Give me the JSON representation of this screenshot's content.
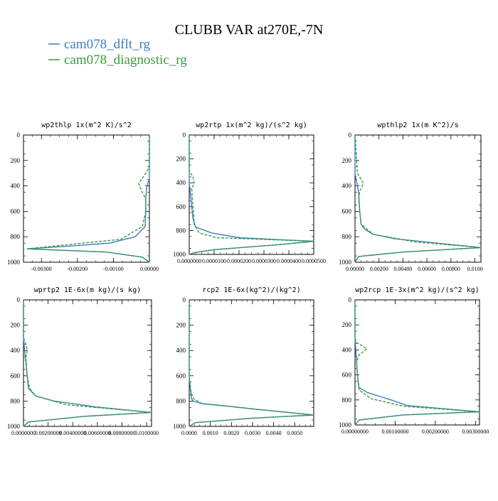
{
  "page": {
    "title": "CLUBB VAR at270E,-7N",
    "legend": [
      {
        "name": "cam078_dflt_rg",
        "color": "#3a7fc2"
      },
      {
        "name": "cam078_diagnostic_rg",
        "color": "#3c9b3c"
      }
    ]
  },
  "chart_data": [
    {
      "type": "line",
      "title": "wp2thlp  1x(m^2 K)/s^2",
      "xlim": [
        -0.0035,
        0.0
      ],
      "xticks": [
        -0.003,
        -0.002,
        -0.001,
        0.0
      ],
      "xtick_labels": [
        "-0.00300",
        "-0.00200",
        "-0.00100",
        "0.00000"
      ],
      "ylim": [
        0,
        1000
      ],
      "yticks": [
        0,
        200,
        400,
        600,
        800,
        1000
      ],
      "ytick_labels": [
        "0",
        "200",
        "400",
        "600",
        "800",
        "1000"
      ],
      "y_reversed": true,
      "series": [
        {
          "name": "cam078_dflt_rg",
          "color": "#3a7fc2",
          "x": [
            0.0,
            0.0,
            0.0,
            -5e-05,
            -8e-05,
            -0.0001,
            -0.0001,
            -0.00012,
            -0.0004,
            -0.0011,
            -0.0023,
            -0.0034,
            -0.0012,
            -0.0002,
            0.0
          ],
          "y": [
            0,
            200,
            350,
            380,
            420,
            500,
            600,
            720,
            800,
            850,
            875,
            895,
            920,
            960,
            1000
          ]
        },
        {
          "name": "cam078_diagnostic_rg",
          "color": "#3c9b3c",
          "x": [
            0.0,
            0.0,
            -0.0001,
            -0.0003,
            -0.0002,
            -0.0001,
            -0.0001,
            -0.0002,
            -0.0008,
            -0.0022,
            -0.0034,
            -0.0012,
            -0.0002,
            0.0
          ],
          "y": [
            0,
            250,
            300,
            380,
            450,
            500,
            600,
            720,
            820,
            860,
            895,
            920,
            960,
            1000
          ]
        }
      ]
    },
    {
      "type": "line",
      "title": "wp2rtp  1x(m^2 kg)/(s^2 kg)",
      "xlim": [
        0.0,
        5e-05
      ],
      "xticks": [
        0.0,
        1e-05,
        2e-05,
        3e-05,
        4e-05,
        5e-05
      ],
      "xtick_labels": [
        "0.0000000",
        "0.0000100",
        "0.0000200",
        "0.0000300",
        "0.0000400",
        "0.0000500"
      ],
      "ylim": [
        0,
        1000
      ],
      "yticks": [
        0,
        200,
        400,
        600,
        800,
        1000
      ],
      "ytick_labels": [
        "0",
        "200",
        "400",
        "600",
        "800",
        "1000"
      ],
      "y_reversed": true,
      "series": [
        {
          "name": "cam078_dflt_rg",
          "color": "#3a7fc2",
          "x": [
            0.0,
            0.0,
            0.0,
            5e-07,
            1e-06,
            1.5e-06,
            2.5e-06,
            9e-06,
            2e-05,
            5e-05,
            3.5e-05,
            1e-05,
            2e-06,
            0.0
          ],
          "y": [
            0,
            300,
            400,
            500,
            600,
            700,
            770,
            820,
            860,
            890,
            920,
            960,
            985,
            1000
          ]
        },
        {
          "name": "cam078_diagnostic_rg",
          "color": "#3c9b3c",
          "x": [
            0.0,
            0.0,
            1.5e-06,
            2e-06,
            1e-06,
            1.5e-06,
            2e-06,
            4e-06,
            1.1e-05,
            5e-05,
            3.5e-05,
            1e-05,
            2e-06,
            0.0
          ],
          "y": [
            0,
            300,
            350,
            400,
            450,
            600,
            750,
            820,
            860,
            890,
            920,
            960,
            985,
            1000
          ]
        }
      ]
    },
    {
      "type": "line",
      "title": "wpthlp2  1x(m K^2)/s",
      "xlim": [
        0.0,
        0.0105
      ],
      "xticks": [
        0.0,
        0.002,
        0.004,
        0.006,
        0.008,
        0.01
      ],
      "xtick_labels": [
        "0.00000",
        "0.00200",
        "0.00400",
        "0.00600",
        "0.00800",
        "0.0100"
      ],
      "ylim": [
        0,
        1000
      ],
      "yticks": [
        0,
        200,
        400,
        600,
        800,
        1000
      ],
      "ytick_labels": [
        "0",
        "200",
        "400",
        "600",
        "800",
        "1000"
      ],
      "y_reversed": true,
      "series": [
        {
          "name": "cam078_dflt_rg",
          "color": "#3a7fc2",
          "x": [
            0.0,
            0.0,
            0.0001,
            0.0002,
            0.0003,
            0.0004,
            0.0005,
            0.0008,
            0.0015,
            0.0033,
            0.0105,
            0.004,
            0.0003,
            0.0
          ],
          "y": [
            0,
            300,
            350,
            400,
            450,
            600,
            700,
            740,
            780,
            815,
            885,
            920,
            955,
            1000
          ]
        },
        {
          "name": "cam078_diagnostic_rg",
          "color": "#3c9b3c",
          "x": [
            0.0,
            0.0002,
            0.0007,
            0.0004,
            0.0003,
            0.0004,
            0.0005,
            0.0015,
            0.005,
            0.0105,
            0.004,
            0.0003,
            0.0
          ],
          "y": [
            0,
            300,
            380,
            440,
            500,
            600,
            700,
            780,
            840,
            885,
            920,
            955,
            1000
          ]
        }
      ]
    },
    {
      "type": "line",
      "title": "wprtp2  1E-6x(m kg)/(s kg)",
      "xlim": [
        0.0,
        0.0104
      ],
      "xticks": [
        0.0,
        0.002,
        0.004,
        0.006,
        0.008,
        0.01
      ],
      "xtick_labels": [
        "0.0000000",
        "0.00200000",
        "0.00400000",
        "0.00600000",
        "0.00800000",
        "0.0100000"
      ],
      "ylim": [
        0,
        1000
      ],
      "yticks": [
        0,
        200,
        400,
        600,
        800,
        1000
      ],
      "ytick_labels": [
        "0",
        "200",
        "400",
        "600",
        "800",
        "1000"
      ],
      "y_reversed": true,
      "series": [
        {
          "name": "cam078_dflt_rg",
          "color": "#3a7fc2",
          "x": [
            0.0,
            0.0,
            0.0001,
            0.0002,
            0.0003,
            0.0004,
            0.0006,
            0.001,
            0.0025,
            0.0058,
            0.0104,
            0.005,
            0.0004,
            0.0
          ],
          "y": [
            0,
            300,
            400,
            500,
            600,
            700,
            720,
            760,
            800,
            845,
            890,
            920,
            965,
            1000
          ]
        },
        {
          "name": "cam078_diagnostic_rg",
          "color": "#3c9b3c",
          "x": [
            0.0,
            0.0,
            0.0002,
            0.0003,
            0.0002,
            0.0003,
            0.0005,
            0.001,
            0.0035,
            0.0104,
            0.005,
            0.0004,
            0.0
          ],
          "y": [
            0,
            300,
            350,
            400,
            450,
            600,
            700,
            760,
            830,
            890,
            920,
            965,
            1000
          ]
        }
      ]
    },
    {
      "type": "line",
      "title": "rcp2  1E-6x(kg^2)/(kg^2)",
      "xlim": [
        0.0,
        0.0059
      ],
      "xticks": [
        0.0,
        0.001,
        0.002,
        0.003,
        0.004,
        0.005
      ],
      "xtick_labels": [
        "0.0000",
        "0.0010",
        "0.0020",
        "0.0030",
        "0.0040",
        "0.0050"
      ],
      "ylim": [
        0,
        1000
      ],
      "yticks": [
        0,
        200,
        400,
        600,
        800,
        1000
      ],
      "ytick_labels": [
        "0",
        "200",
        "400",
        "600",
        "800",
        "1000"
      ],
      "y_reversed": true,
      "series": [
        {
          "name": "cam078_dflt_rg",
          "color": "#3a7fc2",
          "x": [
            0.0,
            0.0,
            2e-05,
            5e-05,
            8e-05,
            0.0001,
            0.0002,
            0.0006,
            0.0018,
            0.0032,
            0.0059,
            0.003,
            0.0003,
            0.0
          ],
          "y": [
            0,
            600,
            650,
            700,
            740,
            780,
            800,
            820,
            840,
            865,
            910,
            935,
            970,
            1000
          ]
        },
        {
          "name": "cam078_diagnostic_rg",
          "color": "#3c9b3c",
          "x": [
            0.0,
            0.0,
            3e-05,
            6e-05,
            0.0001,
            0.0002,
            0.0006,
            0.0018,
            0.0032,
            0.0059,
            0.003,
            0.0003,
            0.0
          ],
          "y": [
            0,
            600,
            650,
            700,
            740,
            780,
            820,
            840,
            865,
            910,
            935,
            970,
            1000
          ]
        }
      ]
    },
    {
      "type": "line",
      "title": "wp2rcp  1E-3x(m^2 kg)/(s^2 kg)",
      "xlim": [
        0.0,
        0.0031
      ],
      "xticks": [
        0.0,
        0.001,
        0.002,
        0.003
      ],
      "xtick_labels": [
        "0.00000000",
        "0.00100000",
        "0.00200000",
        "0.00300000"
      ],
      "ylim": [
        0,
        1000
      ],
      "yticks": [
        0,
        200,
        400,
        600,
        800,
        1000
      ],
      "ytick_labels": [
        "0",
        "200",
        "400",
        "600",
        "800",
        "1000"
      ],
      "y_reversed": true,
      "series": [
        {
          "name": "cam078_dflt_rg",
          "color": "#3a7fc2",
          "x": [
            0.0,
            0.0,
            2e-05,
            4e-05,
            6e-05,
            0.0001,
            0.0003,
            0.0006,
            0.0009,
            0.0013,
            0.0031,
            0.0012,
            0.0001,
            0.0
          ],
          "y": [
            0,
            300,
            400,
            500,
            600,
            700,
            740,
            770,
            800,
            845,
            895,
            920,
            960,
            1000
          ]
        },
        {
          "name": "cam078_diagnostic_rg",
          "color": "#3c9b3c",
          "x": [
            0.0,
            0.0,
            3e-05,
            0.0003,
            0.0001,
            4e-05,
            6e-05,
            0.0001,
            0.0004,
            0.0012,
            0.0031,
            0.0012,
            0.0001,
            0.0
          ],
          "y": [
            0,
            300,
            340,
            390,
            440,
            500,
            600,
            720,
            790,
            850,
            895,
            920,
            960,
            1000
          ]
        }
      ]
    }
  ]
}
